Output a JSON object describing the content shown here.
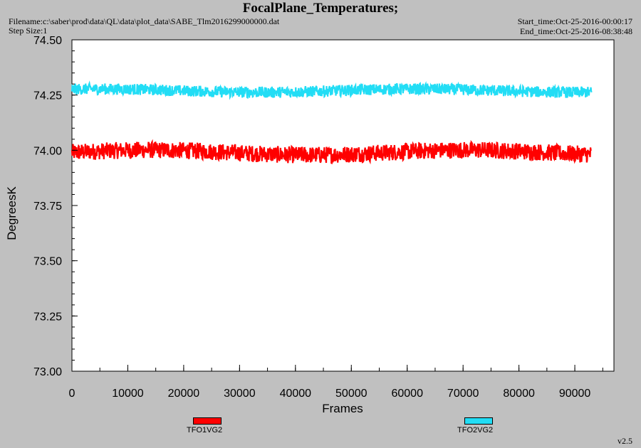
{
  "header": {
    "filename": "Filename:c:\\saber\\prod\\data\\QL\\data\\plot_data\\SABE_Tlm2016299000000.dat",
    "step_size": "Step Size:1",
    "start_time": "Start_time:Oct-25-2016-00:00:17",
    "end_time": "End_time:Oct-25-2016-08:38:48"
  },
  "version": "v2.5",
  "colors": {
    "background": "#c0c0c0",
    "plot_area": "#ffffff",
    "series_1": "#ff0000",
    "series_2": "#22ddf5"
  },
  "chart_data": {
    "type": "line",
    "title": "FocalPlane_Temperatures;",
    "xlabel": "Frames",
    "ylabel": "DegreesK",
    "xlim": [
      0,
      97000
    ],
    "ylim": [
      73.0,
      74.5
    ],
    "x_ticks": [
      0,
      10000,
      20000,
      30000,
      40000,
      50000,
      60000,
      70000,
      80000,
      90000
    ],
    "x_tick_labels": [
      "0",
      "10000",
      "20000",
      "30000",
      "40000",
      "50000",
      "60000",
      "70000",
      "80000",
      "90000"
    ],
    "y_ticks": [
      73.0,
      73.25,
      73.5,
      73.75,
      74.0,
      74.25,
      74.5
    ],
    "y_tick_labels": [
      "73.00",
      "73.25",
      "73.50",
      "73.75",
      "74.00",
      "74.25",
      "74.50"
    ],
    "grid": false,
    "legend_position": "bottom",
    "series": [
      {
        "name": "TFO1VG2",
        "color": "#ff0000",
        "x_range": [
          0,
          93000
        ],
        "mean": 73.99,
        "noise_band": [
          73.95,
          74.04
        ]
      },
      {
        "name": "TFO2VG2",
        "color": "#22ddf5",
        "x_range": [
          0,
          93000
        ],
        "mean": 74.27,
        "noise_band": [
          74.24,
          74.3
        ]
      }
    ]
  }
}
